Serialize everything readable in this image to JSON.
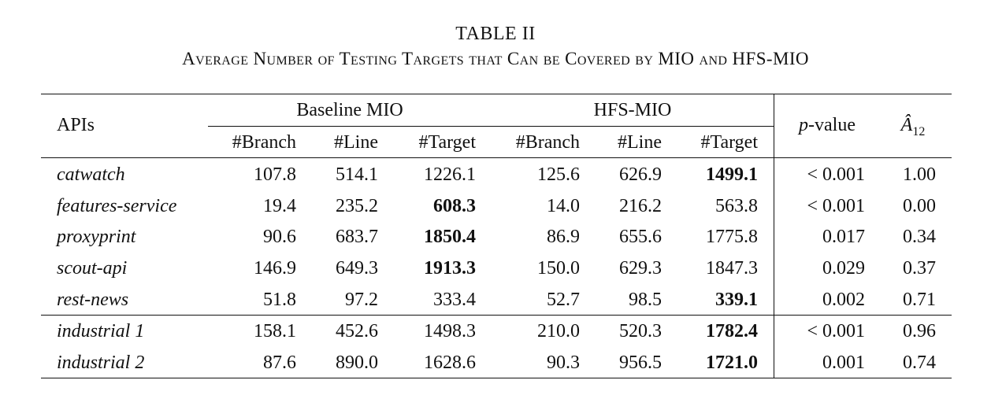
{
  "caption": {
    "label": "TABLE II",
    "title": "Average Number of Testing Targets that Can be Covered by MIO and HFS-MIO"
  },
  "header": {
    "apis": "APIs",
    "group1": "Baseline MIO",
    "group2": "HFS-MIO",
    "pvalue_italic": "p",
    "pvalue_rest": "-value",
    "a12_letter": "Â",
    "a12_sub": "12",
    "subcols": [
      "#Branch",
      "#Line",
      "#Target",
      "#Branch",
      "#Line",
      "#Target"
    ]
  },
  "rows": [
    {
      "api": "catwatch",
      "b_branch": "107.8",
      "b_line": "514.1",
      "b_target": "1226.1",
      "h_branch": "125.6",
      "h_line": "626.9",
      "h_target": "1499.1",
      "pvalue": "< 0.001",
      "a12": "1.00",
      "bold": "h_target"
    },
    {
      "api": "features-service",
      "b_branch": "19.4",
      "b_line": "235.2",
      "b_target": "608.3",
      "h_branch": "14.0",
      "h_line": "216.2",
      "h_target": "563.8",
      "pvalue": "< 0.001",
      "a12": "0.00",
      "bold": "b_target"
    },
    {
      "api": "proxyprint",
      "b_branch": "90.6",
      "b_line": "683.7",
      "b_target": "1850.4",
      "h_branch": "86.9",
      "h_line": "655.6",
      "h_target": "1775.8",
      "pvalue": "0.017",
      "a12": "0.34",
      "bold": "b_target"
    },
    {
      "api": "scout-api",
      "b_branch": "146.9",
      "b_line": "649.3",
      "b_target": "1913.3",
      "h_branch": "150.0",
      "h_line": "629.3",
      "h_target": "1847.3",
      "pvalue": "0.029",
      "a12": "0.37",
      "bold": "b_target"
    },
    {
      "api": "rest-news",
      "b_branch": "51.8",
      "b_line": "97.2",
      "b_target": "333.4",
      "h_branch": "52.7",
      "h_line": "98.5",
      "h_target": "339.1",
      "pvalue": "0.002",
      "a12": "0.71",
      "bold": "h_target"
    },
    {
      "api": "industrial 1",
      "b_branch": "158.1",
      "b_line": "452.6",
      "b_target": "1498.3",
      "h_branch": "210.0",
      "h_line": "520.3",
      "h_target": "1782.4",
      "pvalue": "< 0.001",
      "a12": "0.96",
      "bold": "h_target"
    },
    {
      "api": "industrial 2",
      "b_branch": "87.6",
      "b_line": "890.0",
      "b_target": "1628.6",
      "h_branch": "90.3",
      "h_line": "956.5",
      "h_target": "1721.0",
      "pvalue": "0.001",
      "a12": "0.74",
      "bold": "h_target"
    }
  ]
}
